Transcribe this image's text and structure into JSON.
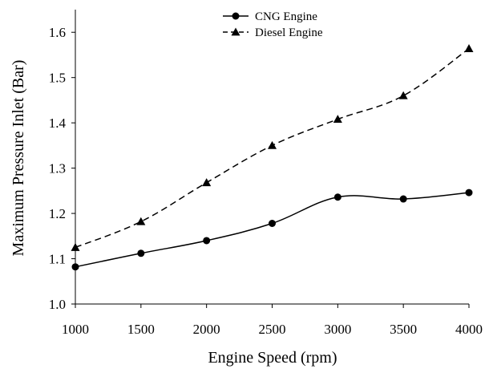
{
  "chart_data": {
    "type": "line",
    "title": "",
    "xlabel": "Engine Speed (rpm)",
    "ylabel": "Maximum Pressure Inlet (Bar)",
    "x": [
      1000,
      1500,
      2000,
      2500,
      3000,
      3500,
      4000
    ],
    "x_ticks": [
      "1000",
      "1500",
      "2000",
      "2500",
      "3000",
      "3500",
      "4000"
    ],
    "y_ticks": [
      "1.0",
      "1.1",
      "1.2",
      "1.3",
      "1.4",
      "1.5",
      "1.6"
    ],
    "xlim": [
      1000,
      4000
    ],
    "ylim": [
      1.0,
      1.65
    ],
    "grid": false,
    "legend_position": "top-center",
    "series": [
      {
        "name": "CNG Engine",
        "marker": "circle",
        "line_style": "solid",
        "color": "#000000",
        "values": [
          1.082,
          1.112,
          1.14,
          1.178,
          1.236,
          1.232,
          1.246
        ]
      },
      {
        "name": "Diesel Engine",
        "marker": "triangle",
        "line_style": "dashed",
        "color": "#000000",
        "values": [
          1.125,
          1.182,
          1.268,
          1.35,
          1.408,
          1.46,
          1.564
        ]
      }
    ]
  }
}
